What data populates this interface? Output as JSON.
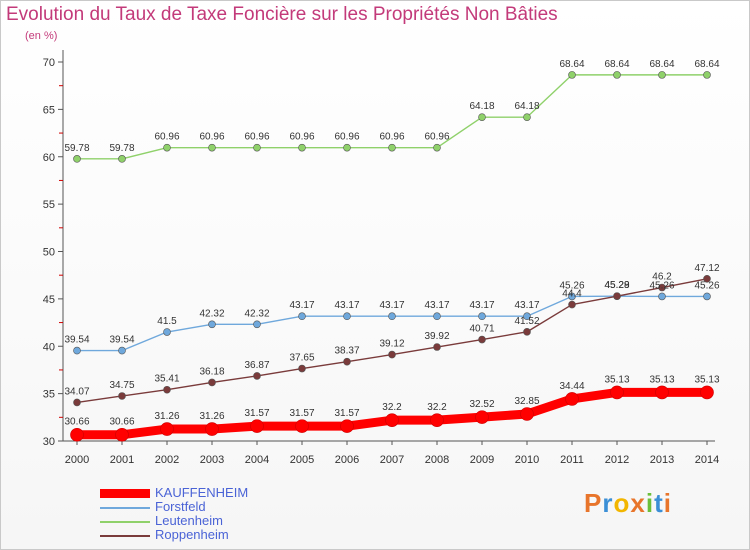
{
  "title": "Evolution du Taux de Taxe Foncière sur les Propriétés Non Bâties",
  "subtitle": "(en %)",
  "logo": {
    "text": "Proxiti",
    "colors": [
      "#e8752b",
      "#3b8fd6",
      "#f2b600",
      "#e8752b",
      "#6bbf3a",
      "#3b8fd6",
      "#e8752b"
    ]
  },
  "chart_data": {
    "type": "line",
    "x": [
      2000,
      2001,
      2002,
      2003,
      2004,
      2005,
      2006,
      2007,
      2008,
      2009,
      2010,
      2011,
      2012,
      2013,
      2014
    ],
    "ylim": [
      30,
      70
    ],
    "yticks": [
      30,
      35,
      40,
      45,
      50,
      55,
      60,
      65,
      70
    ],
    "xlabel": "",
    "ylabel": "",
    "grid": false,
    "legend_position": "bottom-left",
    "series": [
      {
        "name": "KAUFFENHEIM",
        "color": "#ff0000",
        "emphasis": true,
        "values": [
          30.66,
          30.66,
          31.26,
          31.26,
          31.57,
          31.57,
          31.57,
          32.2,
          32.2,
          32.52,
          32.85,
          34.44,
          35.13,
          35.13,
          35.13
        ],
        "labels": [
          "30.66",
          "30.66",
          "31.26",
          "31.26",
          "31.57",
          "31.57",
          "31.57",
          "32.2",
          "32.2",
          "32.52",
          "32.85",
          "34.44",
          "35.13",
          "35.13",
          "35.13"
        ]
      },
      {
        "name": "Forstfeld",
        "color": "#6fa8dc",
        "values": [
          39.54,
          39.54,
          41.5,
          42.32,
          42.32,
          43.17,
          43.17,
          43.17,
          43.17,
          43.17,
          43.17,
          45.26,
          45.28,
          45.26,
          45.26
        ],
        "labels": [
          "39.54",
          "39.54",
          "41.5",
          "42.32",
          "42.32",
          "43.17",
          "43.17",
          "43.17",
          "43.17",
          "43.17",
          "43.17",
          "45.26",
          "45.28",
          "45.26",
          "45.26"
        ]
      },
      {
        "name": "Leutenheim",
        "color": "#8fd16a",
        "values": [
          59.78,
          59.78,
          60.96,
          60.96,
          60.96,
          60.96,
          60.96,
          60.96,
          60.96,
          64.18,
          64.18,
          68.64,
          68.64,
          68.64,
          68.64
        ],
        "labels": [
          "59.78",
          "59.78",
          "60.96",
          "60.96",
          "60.96",
          "60.96",
          "60.96",
          "60.96",
          "60.96",
          "64.18",
          "64.18",
          "68.64",
          "68.64",
          "68.64",
          "68.64"
        ]
      },
      {
        "name": "Roppenheim",
        "color": "#7a3b3b",
        "values": [
          34.07,
          34.75,
          35.41,
          36.18,
          36.87,
          37.65,
          38.37,
          39.12,
          39.92,
          40.71,
          41.52,
          44.4,
          45.29,
          46.2,
          47.12
        ],
        "labels": [
          "34.07",
          "34.75",
          "35.41",
          "36.18",
          "36.87",
          "37.65",
          "38.37",
          "39.12",
          "39.92",
          "40.71",
          "41.52",
          "44.4",
          "45.29",
          "46.2",
          "47.12"
        ]
      }
    ]
  }
}
